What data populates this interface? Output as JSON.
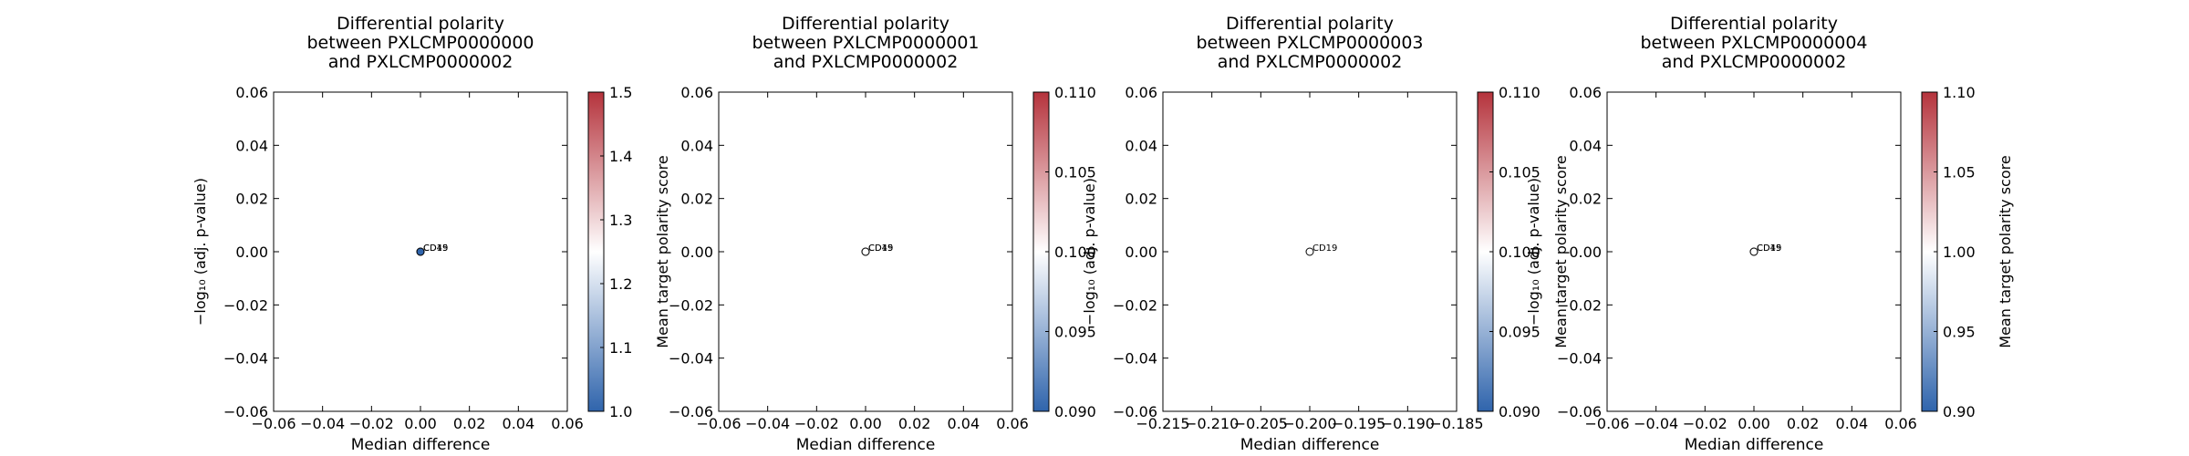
{
  "chart_data": [
    {
      "type": "scatter",
      "title": [
        "Differential polarity",
        "between PXLCMP0000000",
        "and PXLCMP0000002"
      ],
      "xlabel": "Median difference",
      "ylabel": "−log₁₀ (adj. p-value)",
      "xlim": [
        -0.06,
        0.06
      ],
      "ylim": [
        -0.06,
        0.06
      ],
      "xticks": [
        "−0.06",
        "−0.04",
        "−0.02",
        "0.00",
        "0.02",
        "0.04",
        "0.06"
      ],
      "yticks": [
        "−0.06",
        "−0.04",
        "−0.02",
        "0.00",
        "0.02",
        "0.04",
        "0.06"
      ],
      "colorbar": {
        "label": "Mean target polarity score",
        "range": [
          1.0,
          1.5
        ],
        "ticks": [
          "1.0",
          "1.1",
          "1.2",
          "1.3",
          "1.4",
          "1.5"
        ],
        "cmap": "vlag",
        "colors": [
          "#2f64ac",
          "#ffffff",
          "#b5333c"
        ]
      },
      "points": [
        {
          "x": 0.0,
          "y": 0.0,
          "label": "CD19",
          "color": "#2f64ac"
        },
        {
          "x": 0.0,
          "y": 0.0,
          "label": "CD45",
          "color": "#2f64ac"
        }
      ],
      "grid": false
    },
    {
      "type": "scatter",
      "title": [
        "Differential polarity",
        "between PXLCMP0000001",
        "and PXLCMP0000002"
      ],
      "xlabel": "Median difference",
      "ylabel": "",
      "xlim": [
        -0.06,
        0.06
      ],
      "ylim": [
        -0.06,
        0.06
      ],
      "xticks": [
        "−0.06",
        "−0.04",
        "−0.02",
        "0.00",
        "0.02",
        "0.04",
        "0.06"
      ],
      "yticks": [
        "−0.06",
        "−0.04",
        "−0.02",
        "0.00",
        "0.02",
        "0.04",
        "0.06"
      ],
      "colorbar": {
        "label": "",
        "range": [
          0.09,
          0.11
        ],
        "ticks": [
          "0.090",
          "0.095",
          "0.100",
          "0.105",
          "0.110"
        ],
        "cmap": "vlag",
        "colors": [
          "#2f64ac",
          "#ffffff",
          "#b5333c"
        ]
      },
      "points": [
        {
          "x": 0.0,
          "y": 0.0,
          "label": "CD19",
          "color": "#ffffff"
        },
        {
          "x": 0.0,
          "y": 0.0,
          "label": "CD45",
          "color": "#ffffff"
        }
      ],
      "grid": false
    },
    {
      "type": "scatter",
      "title": [
        "Differential polarity",
        "between PXLCMP0000003",
        "and PXLCMP0000002"
      ],
      "xlabel": "Median difference",
      "ylabel": "−log₁₀ (adj. p-value)",
      "xlim": [
        -0.215,
        -0.185
      ],
      "ylim": [
        -0.06,
        0.06
      ],
      "xticks": [
        "−0.215",
        "−0.210",
        "−0.205",
        "−0.200",
        "−0.195",
        "−0.190",
        "−0.185"
      ],
      "yticks": [
        "−0.06",
        "−0.04",
        "−0.02",
        "0.00",
        "0.02",
        "0.04",
        "0.06"
      ],
      "colorbar": {
        "label": "Mean target polarity score",
        "range": [
          0.09,
          0.11
        ],
        "ticks": [
          "0.090",
          "0.095",
          "0.100",
          "0.105",
          "0.110"
        ],
        "cmap": "vlag",
        "colors": [
          "#2f64ac",
          "#ffffff",
          "#b5333c"
        ]
      },
      "points": [
        {
          "x": -0.2,
          "y": 0.0,
          "label": "CD19",
          "color": "#ffffff"
        }
      ],
      "grid": false
    },
    {
      "type": "scatter",
      "title": [
        "Differential polarity",
        "between PXLCMP0000004",
        "and PXLCMP0000002"
      ],
      "xlabel": "Median difference",
      "ylabel": "−log₁₀ (adj. p-value)",
      "xlim": [
        -0.06,
        0.06
      ],
      "ylim": [
        -0.06,
        0.06
      ],
      "xticks": [
        "−0.06",
        "−0.04",
        "−0.02",
        "0.00",
        "0.02",
        "0.04",
        "0.06"
      ],
      "yticks": [
        "−0.06",
        "−0.04",
        "−0.02",
        "0.00",
        "0.02",
        "0.04",
        "0.06"
      ],
      "colorbar": {
        "label": "Mean target polarity score",
        "range": [
          0.9,
          1.1
        ],
        "ticks": [
          "0.90",
          "0.95",
          "1.00",
          "1.05",
          "1.10"
        ],
        "cmap": "vlag",
        "colors": [
          "#2f64ac",
          "#ffffff",
          "#b5333c"
        ]
      },
      "points": [
        {
          "x": 0.0,
          "y": 0.0,
          "label": "CD19",
          "color": "#ffffff"
        },
        {
          "x": 0.0,
          "y": 0.0,
          "label": "CD45",
          "color": "#ffffff"
        }
      ],
      "grid": false
    }
  ]
}
